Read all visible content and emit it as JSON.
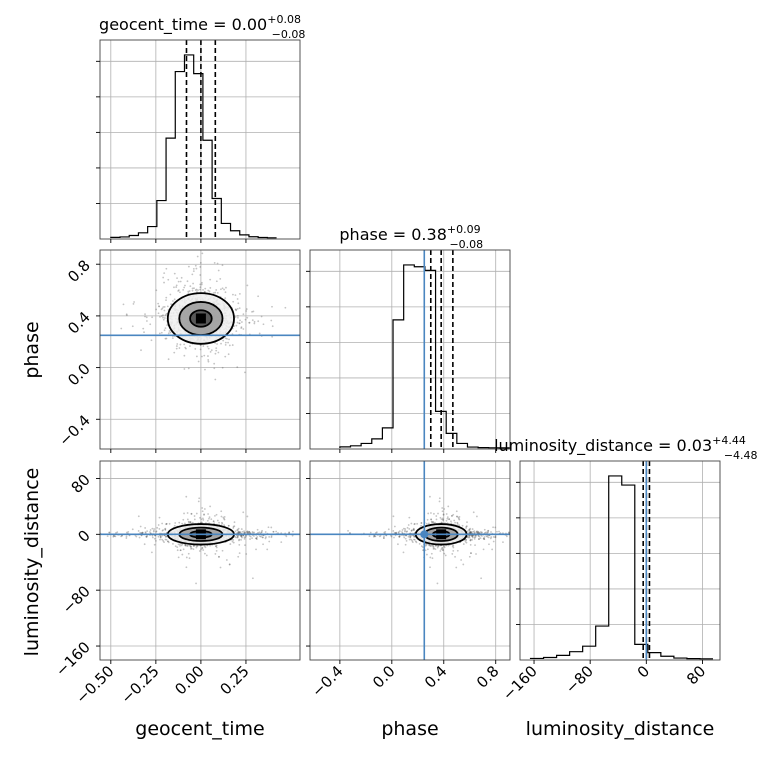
{
  "chart_data": {
    "type": "corner",
    "parameters": [
      "geocent_time",
      "phase",
      "luminosity_distance"
    ],
    "axis_labels": [
      "geocent_time",
      "phase",
      "luminosity_distance"
    ],
    "injection": {
      "geocent_time": null,
      "phase": 0.25,
      "luminosity_distance": 0,
      "color": "#4a86c0"
    },
    "ranges": {
      "geocent_time": [
        -0.56,
        0.55
      ],
      "phase": [
        -0.63,
        0.91
      ],
      "luminosity_distance": [
        -180,
        105
      ]
    },
    "ticks": {
      "geocent_time": {
        "values": [
          -0.5,
          -0.25,
          0.0,
          0.25
        ],
        "labels": [
          "−0.50",
          "−0.25",
          "0.00",
          "0.25"
        ]
      },
      "phase": {
        "values": [
          -0.4,
          0.0,
          0.4,
          0.8
        ],
        "labels": [
          "−0.4",
          "0.0",
          "0.4",
          "0.8"
        ]
      },
      "luminosity_distance": {
        "values": [
          -160,
          -80,
          0,
          80
        ],
        "labels": [
          "−160",
          "−80",
          "0",
          "80"
        ]
      }
    },
    "diag_titles": [
      {
        "name": "geocent_time",
        "median": "0.00",
        "plus": "+0.08",
        "minus": "−0.08"
      },
      {
        "name": "phase",
        "median": "0.38",
        "plus": "+0.09",
        "minus": "−0.08"
      },
      {
        "name": "luminosity_distance",
        "median": "0.03",
        "plus": "+4.44",
        "minus": "−4.48"
      }
    ],
    "quantiles": {
      "geocent_time": [
        -0.08,
        0.0,
        0.08
      ],
      "phase": [
        0.3,
        0.38,
        0.47
      ],
      "luminosity_distance": [
        -4.45,
        0.03,
        4.47
      ]
    },
    "histograms": {
      "geocent_time": {
        "range": [
          -0.5,
          0.42
        ],
        "counts": [
          0.3,
          0.5,
          1.2,
          2.5,
          5.5,
          18,
          48,
          80,
          88,
          79,
          47,
          19,
          7,
          3.5,
          1.5,
          0.6,
          0.25,
          0.1
        ]
      },
      "phase": {
        "range": [
          -0.4,
          0.91
        ],
        "counts": [
          0.6,
          1.2,
          2.5,
          5,
          11,
          70,
          100,
          99,
          97,
          20,
          8,
          2.5,
          0.5,
          0.2,
          0.1,
          0.05
        ]
      },
      "luminosity_distance": {
        "range": [
          -165,
          95
        ],
        "counts": [
          0.3,
          0.8,
          2,
          4,
          7,
          18,
          100,
          95,
          8,
          3.5,
          1.5,
          0.5,
          0.2,
          0.1
        ]
      }
    }
  }
}
